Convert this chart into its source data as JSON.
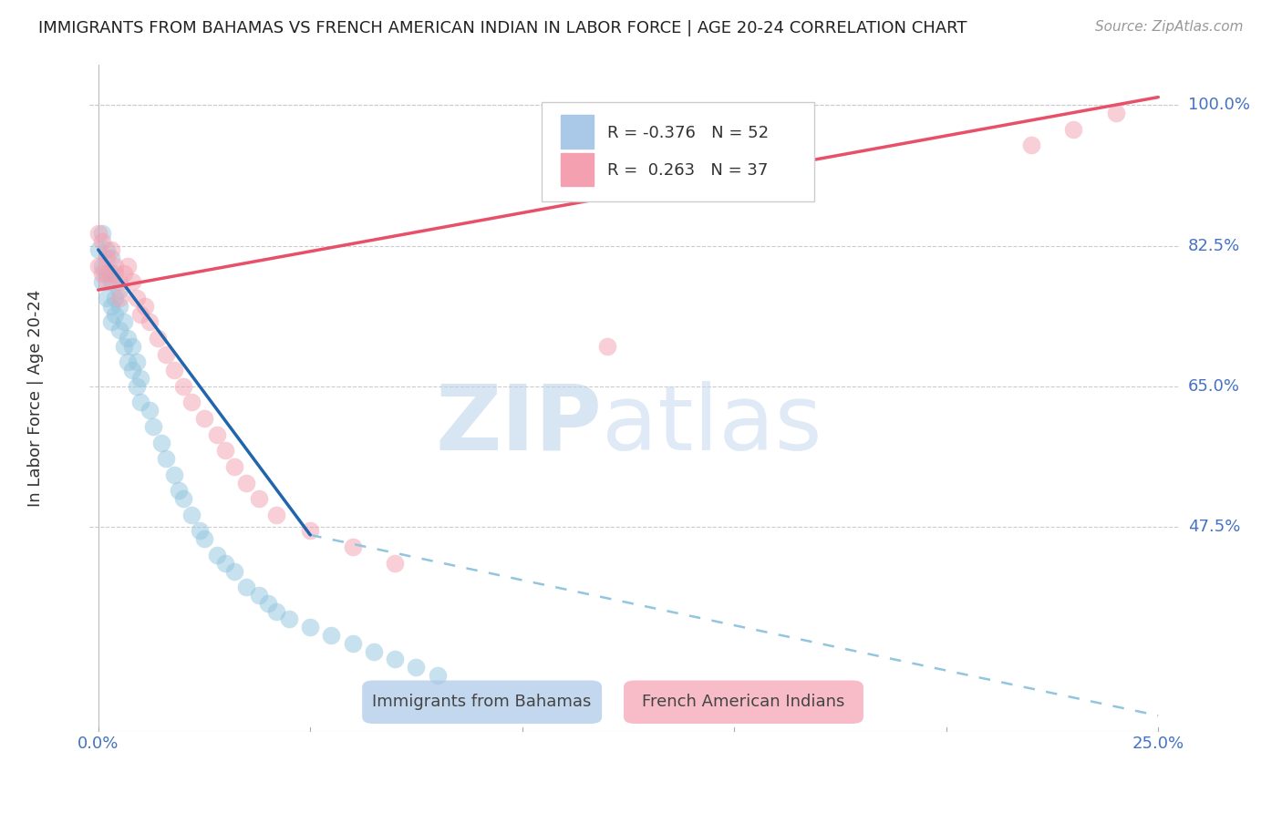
{
  "title": "IMMIGRANTS FROM BAHAMAS VS FRENCH AMERICAN INDIAN IN LABOR FORCE | AGE 20-24 CORRELATION CHART",
  "source": "Source: ZipAtlas.com",
  "ylabel": "In Labor Force | Age 20-24",
  "yticks": [
    0.475,
    0.65,
    0.825,
    1.0
  ],
  "ytick_labels": [
    "47.5%",
    "65.0%",
    "82.5%",
    "100.0%"
  ],
  "xticks": [
    0.0,
    0.25
  ],
  "xtick_labels": [
    "0.0%",
    "25.0%"
  ],
  "xmin": -0.002,
  "xmax": 0.255,
  "ymin": 0.22,
  "ymax": 1.05,
  "blue_label": "Immigrants from Bahamas",
  "pink_label": "French American Indians",
  "blue_color": "#92c5de",
  "pink_color": "#f4a0b0",
  "blue_scatter_x": [
    0.0,
    0.001,
    0.001,
    0.001,
    0.002,
    0.002,
    0.002,
    0.003,
    0.003,
    0.003,
    0.003,
    0.004,
    0.004,
    0.004,
    0.005,
    0.005,
    0.005,
    0.006,
    0.006,
    0.007,
    0.007,
    0.008,
    0.008,
    0.009,
    0.009,
    0.01,
    0.01,
    0.012,
    0.013,
    0.015,
    0.016,
    0.018,
    0.019,
    0.02,
    0.022,
    0.024,
    0.025,
    0.028,
    0.03,
    0.032,
    0.035,
    0.038,
    0.04,
    0.042,
    0.045,
    0.05,
    0.055,
    0.06,
    0.065,
    0.07,
    0.075,
    0.08
  ],
  "blue_scatter_y": [
    0.82,
    0.84,
    0.8,
    0.78,
    0.82,
    0.79,
    0.76,
    0.81,
    0.78,
    0.75,
    0.73,
    0.79,
    0.76,
    0.74,
    0.77,
    0.75,
    0.72,
    0.73,
    0.7,
    0.71,
    0.68,
    0.7,
    0.67,
    0.68,
    0.65,
    0.66,
    0.63,
    0.62,
    0.6,
    0.58,
    0.56,
    0.54,
    0.52,
    0.51,
    0.49,
    0.47,
    0.46,
    0.44,
    0.43,
    0.42,
    0.4,
    0.39,
    0.38,
    0.37,
    0.36,
    0.35,
    0.34,
    0.33,
    0.32,
    0.31,
    0.3,
    0.29
  ],
  "pink_scatter_x": [
    0.0,
    0.0,
    0.001,
    0.001,
    0.002,
    0.002,
    0.003,
    0.003,
    0.004,
    0.005,
    0.005,
    0.006,
    0.007,
    0.008,
    0.009,
    0.01,
    0.011,
    0.012,
    0.014,
    0.016,
    0.018,
    0.02,
    0.022,
    0.025,
    0.028,
    0.03,
    0.032,
    0.035,
    0.038,
    0.042,
    0.05,
    0.06,
    0.07,
    0.12,
    0.22,
    0.23,
    0.24
  ],
  "pink_scatter_y": [
    0.84,
    0.8,
    0.83,
    0.79,
    0.81,
    0.78,
    0.82,
    0.79,
    0.8,
    0.78,
    0.76,
    0.79,
    0.8,
    0.78,
    0.76,
    0.74,
    0.75,
    0.73,
    0.71,
    0.69,
    0.67,
    0.65,
    0.63,
    0.61,
    0.59,
    0.57,
    0.55,
    0.53,
    0.51,
    0.49,
    0.47,
    0.45,
    0.43,
    0.7,
    0.95,
    0.97,
    0.99
  ],
  "blue_line_x0": 0.0,
  "blue_line_y0": 0.82,
  "blue_line_solid_x1": 0.05,
  "blue_line_solid_y1": 0.465,
  "blue_line_dash_x1": 0.25,
  "blue_line_dash_y1": 0.24,
  "pink_line_x0": 0.0,
  "pink_line_y0": 0.77,
  "pink_line_x1": 0.25,
  "pink_line_y1": 1.01,
  "watermark_zip": "ZIP",
  "watermark_atlas": "atlas",
  "watermark_zip_color": "#b8d0e8",
  "watermark_atlas_color": "#c8daf0",
  "legend_R_blue": "R = -0.376",
  "legend_N_blue": "N = 52",
  "legend_R_pink": "R =  0.263",
  "legend_N_pink": "N = 37"
}
